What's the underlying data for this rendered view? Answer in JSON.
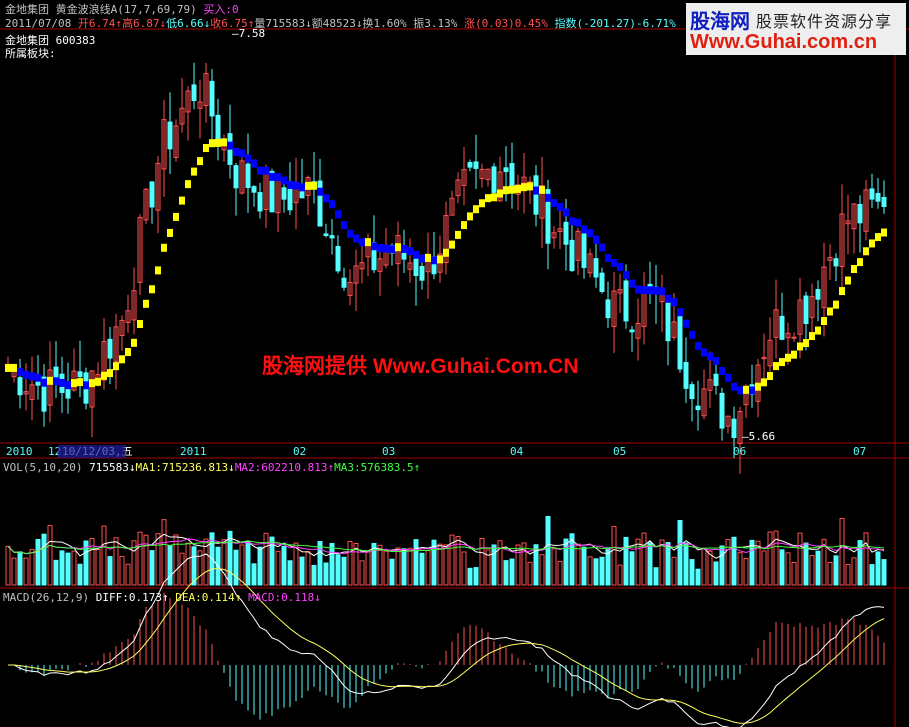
{
  "header": {
    "stock_name": "金地集团",
    "indicator": "黄金波浪线A(17,7,69,79)",
    "signal": "买入:0",
    "date": "2011/07/08",
    "open": "开6.74↑",
    "high": "高6.87↓",
    "low": "低6.66↓",
    "close": "收6.75↑",
    "volume": "量715583↓",
    "amount": "额48523↓",
    "turnover": "换1.60%",
    "amplitude": "振3.13%",
    "change": "涨(0.03)0.45%",
    "index": "指数(-201.27)-6.71%",
    "code_line": "金地集团 600383",
    "sector": "所属板块:"
  },
  "logo": {
    "brand": "股海网",
    "tagline": "股票软件资源分享",
    "url": "Www.Guhai.com.cn"
  },
  "watermark": "股海网提供 Www.Guhai.Com.CN",
  "date_axis": {
    "labels": [
      "2010",
      "12",
      "10/12/03,五",
      "2011",
      "02",
      "03",
      "04",
      "05",
      "06",
      "07"
    ]
  },
  "vol_panel": {
    "title": "VOL(5,10,20)",
    "value": "715583↓",
    "ma1": "MA1:715236.813↓",
    "ma2": "MA2:602210.813↑",
    "ma3": "MA3:576383.5↑"
  },
  "macd_panel": {
    "title": "MACD(26,12,9)",
    "diff": "DIFF:0.173↑",
    "dea": "DEA:0.114↑",
    "macd": "MACD:0.118↓"
  },
  "colors": {
    "up": "#ff5050",
    "down": "#54ffff",
    "wave_up": "#ffff00",
    "wave_down": "#0000ff",
    "frame": "#a00000"
  },
  "chart_data": {
    "type": "candlestick",
    "max_label": "7.58",
    "min_label": "5.66",
    "ylim": [
      5.6,
      7.6
    ],
    "close_keypoints": [
      5.98,
      5.87,
      5.9,
      6.21,
      7.02,
      7.35,
      6.92,
      6.78,
      6.83,
      6.4,
      6.55,
      6.45,
      6.83,
      6.97,
      6.74,
      6.5,
      6.25,
      6.3,
      5.92,
      5.73,
      6.16,
      6.3,
      6.69,
      6.75
    ]
  }
}
